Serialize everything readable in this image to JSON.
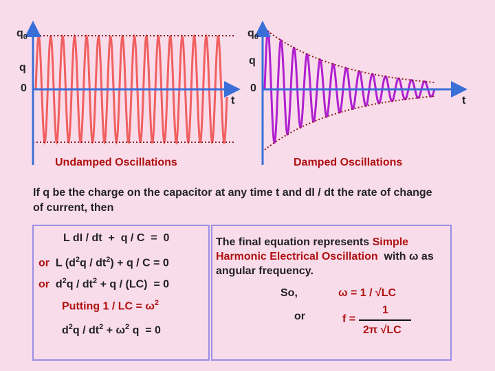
{
  "left_graph": {
    "amplitude_label": {
      "base": "q",
      "sub": "0"
    },
    "q_label": "q",
    "origin_label": "0",
    "time_label": "t",
    "caption": "Undamped Oscillations"
  },
  "right_graph": {
    "amplitude_label": {
      "base": "q",
      "sub": "0"
    },
    "q_label": "q",
    "origin_label": "0",
    "time_label": "t",
    "caption": "Damped Oscillations"
  },
  "intro": "If q be the charge on the capacitor at any time t and dI / dt the rate of change of current, then",
  "equations": [
    [
      {
        "t": "L dI / dt  +  q / C  =  0"
      }
    ],
    [
      {
        "t": "or",
        "style": "red"
      },
      {
        "t": "  L (d"
      },
      {
        "t": "2",
        "style": "sup"
      },
      {
        "t": "q / dt"
      },
      {
        "t": "2",
        "style": "sup"
      },
      {
        "t": ") + q / C = 0"
      }
    ],
    [
      {
        "t": "or",
        "style": "red"
      },
      {
        "t": "  d"
      },
      {
        "t": "2",
        "style": "sup"
      },
      {
        "t": "q / dt"
      },
      {
        "t": "2",
        "style": "sup"
      },
      {
        "t": " + q / (LC)  = 0"
      }
    ],
    [
      {
        "t": "Putting 1 / LC = ω",
        "style": "red"
      },
      {
        "t": "2",
        "style": "redsup"
      }
    ],
    [
      {
        "t": "d"
      },
      {
        "t": "2",
        "style": "sup"
      },
      {
        "t": "q / dt"
      },
      {
        "t": "2",
        "style": "sup"
      },
      {
        "t": " + ω"
      },
      {
        "t": "2",
        "style": "sup"
      },
      {
        "t": " q  = 0"
      }
    ]
  ],
  "explanation": [
    {
      "t": "The final equation represents "
    },
    {
      "t": "Simple Harmonic Electrical Oscillation",
      "style": "red"
    },
    {
      "t": "  with ω as angular frequency."
    }
  ],
  "so_label": "So,",
  "omega_equation": "ω = 1 / √LC",
  "or_label": "or",
  "frequency_equation": {
    "lhs": "f =",
    "numerator": "1",
    "denominator": "2π √LC"
  }
}
